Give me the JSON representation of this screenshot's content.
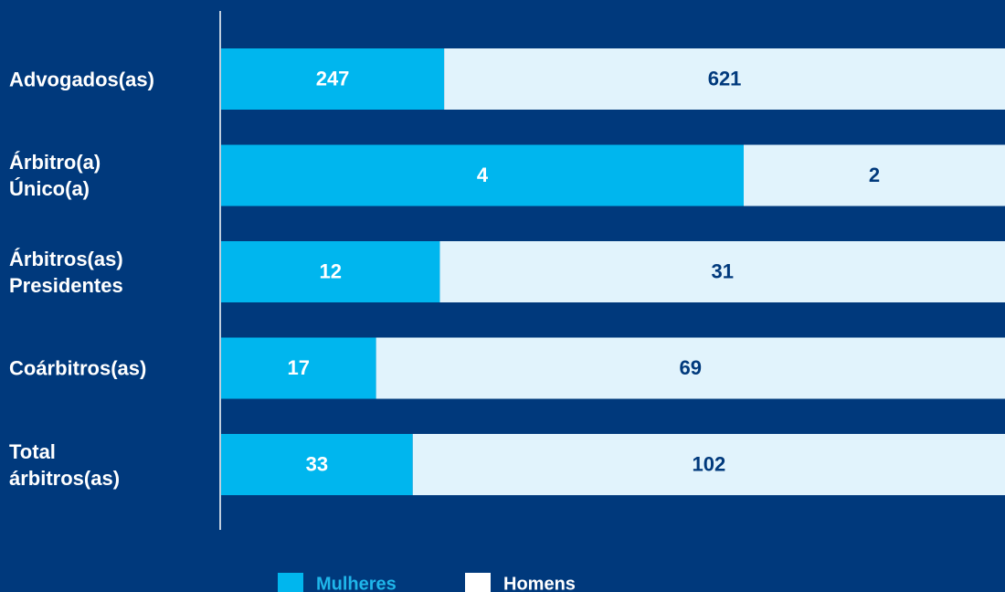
{
  "chart_data": {
    "type": "bar",
    "orientation": "horizontal",
    "stacked": true,
    "percent_stacked": true,
    "categories": [
      "Advogados(as)",
      "Árbitro(a)\nÚnico(a)",
      "Árbitros(as)\nPresidentes",
      "Coárbitros(as)",
      "Total\nárbitros(as)"
    ],
    "series": [
      {
        "name": "Mulheres",
        "color": "#00b6ee",
        "values": [
          247,
          4,
          12,
          17,
          33
        ]
      },
      {
        "name": "Homens",
        "color": "#e1f3fc",
        "values": [
          621,
          2,
          31,
          69,
          102
        ]
      }
    ],
    "legend": "bottom"
  }
}
